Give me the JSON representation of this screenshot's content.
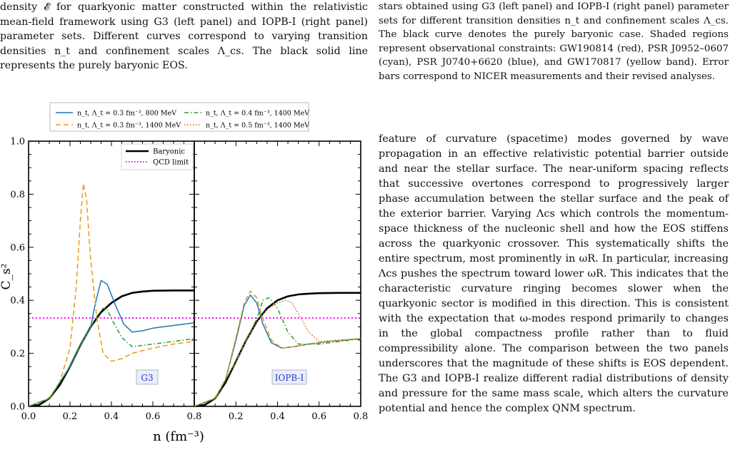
{
  "left_caption": "density 𝓔 for quarkyonic matter constructed within the relativistic mean-field framework using G3 (left panel) and IOPB-I (right panel) parameter sets. Different curves correspond to varying transition densities n_t and confinement scales Λ_cs. The black solid line represents the purely baryonic EOS.",
  "right_caption": "stars obtained using G3 (left panel) and IOPB-I (right panel) parameter sets for different transition densities n_t and confinement scales Λ_cs. The black curve denotes the purely baryonic case. Shaded regions represent observational constraints: GW190814 (red), PSR J0952–0607 (cyan), PSR J0740+6620 (blue), and GW170817 (yellow band). Error bars correspond to NICER measurements and their revised analyses.",
  "right_body": "feature of curvature (spacetime) modes governed by wave propagation in an effective relativistic potential barrier outside and near the stellar surface. The near-uniform spacing reflects that successive overtones correspond to progressively larger phase accumulation between the stellar surface and the peak of the exterior barrier. Varying Λcs which controls the momentum-space thickness of the nucleonic shell and how the EOS stiffens across the quarkyonic crossover. This systematically shifts the entire spectrum, most prominently in ωR. In particular, increasing Λcs pushes the spectrum toward lower ωR. This indicates that the characteristic curvature ringing becomes slower when the quarkyonic sector is modified in this direction. This is consistent with the expectation that ω-modes respond primarily to changes in the global compactness profile rather than to fluid compressibility alone. The comparison between the two panels underscores that the magnitude of these shifts is EOS dependent. The G3 and IOPB-I realize different radial distributions of density and pressure for the same mass scale, which alters the curvature potential and hence the complex QNM spectrum.",
  "chart_data": {
    "type": "line",
    "xlabel": "n (fm⁻³)",
    "ylabel": "C_s²",
    "xlim": [
      0.0,
      0.8
    ],
    "ylim": [
      0.0,
      1.0
    ],
    "xticks": [
      "0.0",
      "0.2",
      "0.4",
      "0.6",
      "0.8"
    ],
    "yticks": [
      "0.0",
      "0.2",
      "0.4",
      "0.6",
      "0.8",
      "1.0"
    ],
    "legend_top": [
      {
        "label": "n_t, Λ_t = 0.3 fm⁻³, 800 MeV",
        "color": "#1f77b4",
        "dash": "solid"
      },
      {
        "label": "n_t, Λ_t = 0.4 fm⁻³, 1400 MeV",
        "color": "#2ca02c",
        "dash": "dashdot"
      },
      {
        "label": "n_t, Λ_t = 0.3 fm⁻³, 1400 MeV",
        "color": "#e69a1a",
        "dash": "dashed"
      },
      {
        "label": "n_t, Λ_t = 0.5 fm⁻³, 1400 MeV",
        "color": "#d1651b",
        "dash": "dotted"
      }
    ],
    "legend_inset": [
      {
        "label": "Baryonic",
        "color": "#000000",
        "dash": "solid"
      },
      {
        "label": "QCD limit",
        "color": "#ff00ff",
        "dash": "dotted"
      }
    ],
    "qcd_limit": 0.333,
    "panels": [
      {
        "name": "G3",
        "series": [
          {
            "name": "Baryonic",
            "color": "#000000",
            "dash": "solid",
            "x": [
              0.0,
              0.05,
              0.1,
              0.15,
              0.2,
              0.25,
              0.3,
              0.35,
              0.4,
              0.45,
              0.5,
              0.55,
              0.6,
              0.7,
              0.8
            ],
            "y": [
              0.0,
              0.005,
              0.03,
              0.08,
              0.15,
              0.23,
              0.3,
              0.355,
              0.39,
              0.415,
              0.428,
              0.433,
              0.436,
              0.437,
              0.437
            ]
          },
          {
            "name": "0.3 fm⁻³, 800 MeV",
            "color": "#1f77b4",
            "dash": "solid",
            "x": [
              0.0,
              0.1,
              0.2,
              0.25,
              0.3,
              0.32,
              0.35,
              0.38,
              0.42,
              0.46,
              0.5,
              0.55,
              0.6,
              0.7,
              0.8
            ],
            "y": [
              0.0,
              0.03,
              0.15,
              0.23,
              0.3,
              0.38,
              0.475,
              0.46,
              0.38,
              0.31,
              0.28,
              0.285,
              0.295,
              0.305,
              0.315
            ]
          },
          {
            "name": "0.3 fm⁻³, 1400 MeV",
            "color": "#e69a1a",
            "dash": "dashed",
            "x": [
              0.0,
              0.1,
              0.15,
              0.2,
              0.23,
              0.25,
              0.265,
              0.28,
              0.3,
              0.33,
              0.36,
              0.4,
              0.45,
              0.5,
              0.6,
              0.7,
              0.8
            ],
            "y": [
              0.0,
              0.03,
              0.09,
              0.22,
              0.45,
              0.7,
              0.84,
              0.78,
              0.55,
              0.33,
              0.2,
              0.17,
              0.18,
              0.2,
              0.22,
              0.235,
              0.245
            ]
          },
          {
            "name": "0.4 fm⁻³, 1400 MeV",
            "color": "#2ca02c",
            "dash": "dashdot",
            "x": [
              0.0,
              0.1,
              0.2,
              0.25,
              0.3,
              0.33,
              0.36,
              0.38,
              0.4,
              0.45,
              0.5,
              0.6,
              0.7,
              0.8
            ],
            "y": [
              0.0,
              0.03,
              0.15,
              0.23,
              0.3,
              0.34,
              0.37,
              0.365,
              0.33,
              0.26,
              0.225,
              0.235,
              0.245,
              0.255
            ]
          }
        ]
      },
      {
        "name": "IOPB-I",
        "series": [
          {
            "name": "Baryonic",
            "color": "#000000",
            "dash": "solid",
            "x": [
              0.0,
              0.05,
              0.1,
              0.15,
              0.2,
              0.25,
              0.3,
              0.35,
              0.4,
              0.45,
              0.5,
              0.55,
              0.6,
              0.7,
              0.8
            ],
            "y": [
              0.0,
              0.005,
              0.03,
              0.09,
              0.17,
              0.25,
              0.32,
              0.37,
              0.4,
              0.415,
              0.422,
              0.425,
              0.427,
              0.428,
              0.428
            ]
          },
          {
            "name": "0.3 fm⁻³, 800 MeV",
            "color": "#1f77b4",
            "dash": "solid",
            "x": [
              0.0,
              0.1,
              0.15,
              0.2,
              0.24,
              0.27,
              0.3,
              0.33,
              0.37,
              0.42,
              0.48,
              0.55,
              0.65,
              0.8
            ],
            "y": [
              0.0,
              0.03,
              0.1,
              0.25,
              0.38,
              0.42,
              0.39,
              0.31,
              0.24,
              0.22,
              0.225,
              0.235,
              0.245,
              0.255
            ]
          },
          {
            "name": "0.3 fm⁻³, 1400 MeV",
            "color": "#e69a1a",
            "dash": "dashed",
            "x": [
              0.0,
              0.1,
              0.15,
              0.2,
              0.24,
              0.27,
              0.3,
              0.33,
              0.37,
              0.42,
              0.48,
              0.55,
              0.65,
              0.8
            ],
            "y": [
              0.0,
              0.03,
              0.1,
              0.26,
              0.39,
              0.435,
              0.41,
              0.33,
              0.25,
              0.22,
              0.225,
              0.235,
              0.245,
              0.255
            ]
          },
          {
            "name": "0.4 fm⁻³, 1400 MeV",
            "color": "#2ca02c",
            "dash": "dashdot",
            "x": [
              0.0,
              0.1,
              0.2,
              0.25,
              0.3,
              0.33,
              0.36,
              0.4,
              0.45,
              0.5,
              0.6,
              0.7,
              0.8
            ],
            "y": [
              0.0,
              0.03,
              0.17,
              0.25,
              0.33,
              0.4,
              0.41,
              0.37,
              0.28,
              0.235,
              0.235,
              0.245,
              0.255
            ]
          },
          {
            "name": "0.5 fm⁻³, 1400 MeV",
            "color": "#d1651b",
            "dash": "dotted",
            "x": [
              0.0,
              0.1,
              0.2,
              0.25,
              0.3,
              0.35,
              0.4,
              0.44,
              0.47,
              0.5,
              0.55,
              0.6,
              0.7,
              0.8
            ],
            "y": [
              0.0,
              0.03,
              0.17,
              0.25,
              0.32,
              0.365,
              0.39,
              0.4,
              0.39,
              0.35,
              0.28,
              0.245,
              0.25,
              0.255
            ]
          }
        ]
      }
    ]
  }
}
